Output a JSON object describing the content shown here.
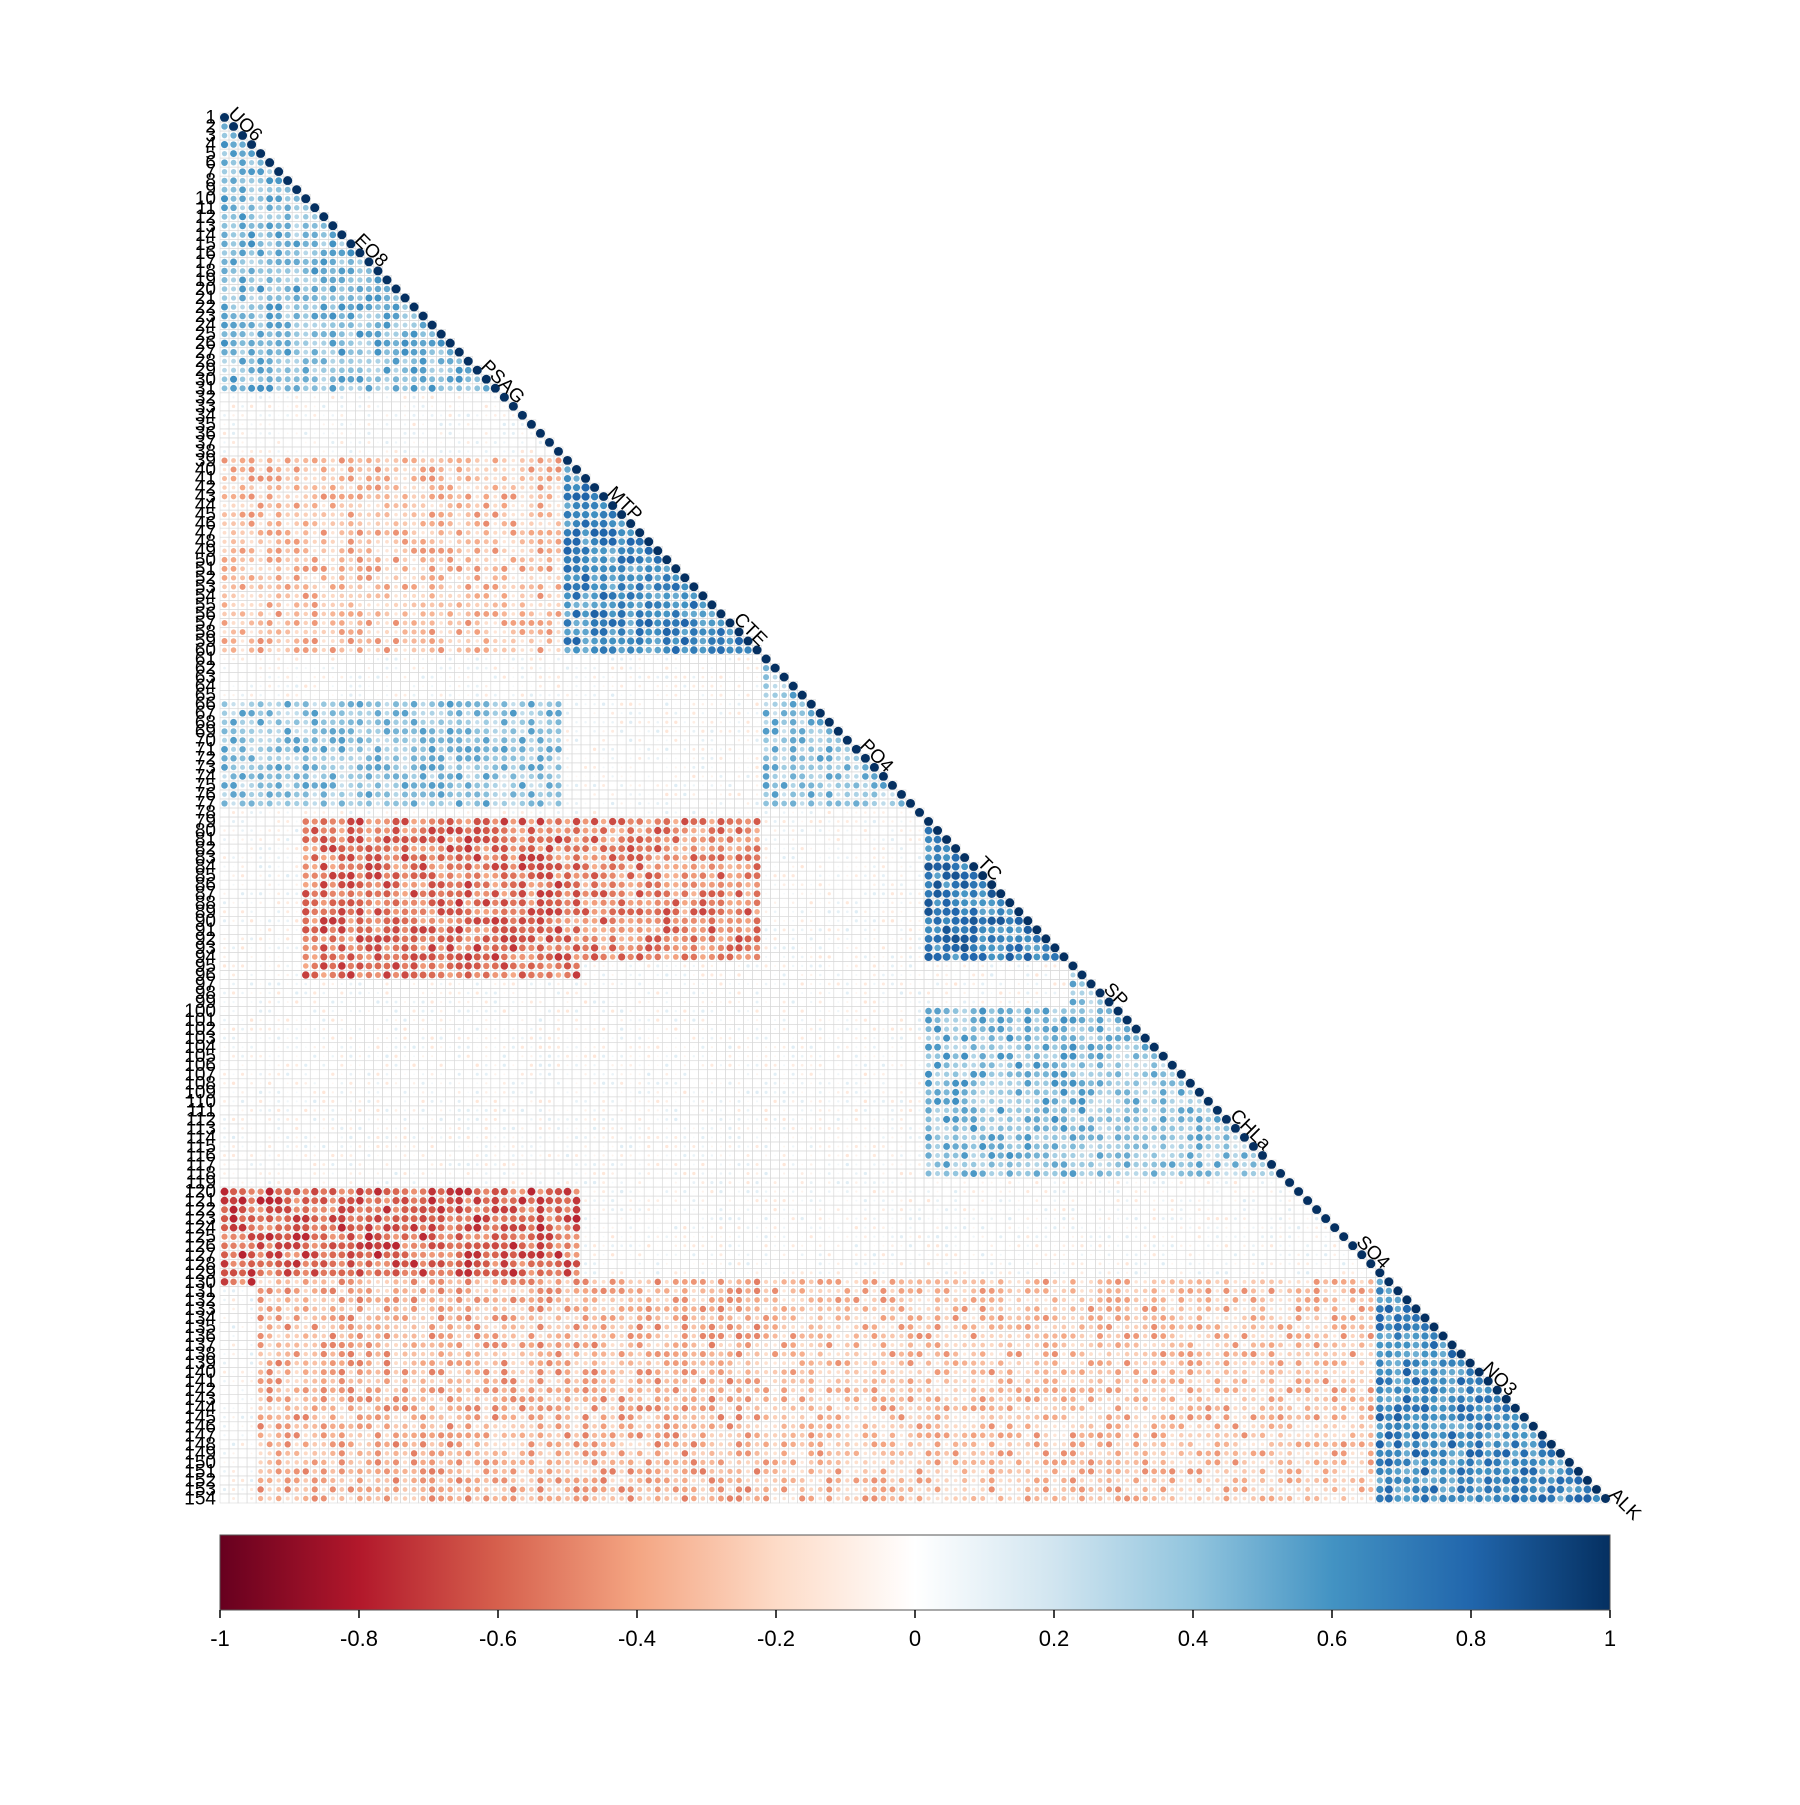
{
  "chart_data": {
    "type": "heatmap",
    "subtype": "correlation-matrix-lower-triangle-circles",
    "title": "",
    "n_variables": 154,
    "row_labels": [
      "1",
      "2",
      "3",
      "4",
      "5",
      "6",
      "7",
      "8",
      "9",
      "10",
      "11",
      "12",
      "13",
      "14",
      "15",
      "16",
      "17",
      "18",
      "19",
      "20",
      "21",
      "22",
      "23",
      "24",
      "25",
      "26",
      "27",
      "28",
      "29",
      "30",
      "31",
      "32",
      "33",
      "34",
      "35",
      "36",
      "37",
      "38",
      "39",
      "40",
      "41",
      "42",
      "43",
      "44",
      "45",
      "46",
      "47",
      "48",
      "49",
      "50",
      "51",
      "52",
      "53",
      "54",
      "55",
      "56",
      "57",
      "58",
      "59",
      "60",
      "61",
      "62",
      "63",
      "64",
      "65",
      "66",
      "67",
      "68",
      "69",
      "70",
      "71",
      "72",
      "73",
      "74",
      "75",
      "76",
      "77",
      "78",
      "79",
      "80",
      "81",
      "82",
      "83",
      "84",
      "85",
      "86",
      "87",
      "88",
      "89",
      "90",
      "91",
      "92",
      "93",
      "94",
      "95",
      "96",
      "97",
      "98",
      "99",
      "100",
      "101",
      "102",
      "103",
      "104",
      "105",
      "106",
      "107",
      "108",
      "109",
      "110",
      "111",
      "112",
      "113",
      "114",
      "115",
      "116",
      "117",
      "118",
      "119",
      "120",
      "121",
      "122",
      "123",
      "124",
      "125",
      "126",
      "127",
      "128",
      "129",
      "130",
      "131",
      "132",
      "133",
      "134",
      "135",
      "136",
      "137",
      "138",
      "139",
      "140",
      "141",
      "142",
      "143",
      "144",
      "145",
      "146",
      "147",
      "148",
      "149",
      "150",
      "151",
      "152",
      "153",
      "154"
    ],
    "diagonal_labels_visible": [
      "UO6",
      "EO8",
      "PSAG",
      "MTP",
      "CTE",
      "PO4",
      "TC",
      "SP",
      "CHLa",
      "SO4",
      "NO3",
      "ALK"
    ],
    "blocks": [
      {
        "rows": [
          2,
          31
        ],
        "cols": [
          1,
          31
        ],
        "value": 0.45
      },
      {
        "rows": [
          39,
          60
        ],
        "cols": [
          39,
          60
        ],
        "value": 0.65
      },
      {
        "rows": [
          61,
          77
        ],
        "cols": [
          61,
          77
        ],
        "value": 0.4
      },
      {
        "rows": [
          79,
          94
        ],
        "cols": [
          79,
          94
        ],
        "value": 0.7
      },
      {
        "rows": [
          95,
          118
        ],
        "cols": [
          95,
          118
        ],
        "value": 0.4
      },
      {
        "rows": [
          129,
          154
        ],
        "cols": [
          129,
          154
        ],
        "value": 0.65
      },
      {
        "rows": [
          79,
          96
        ],
        "cols": [
          10,
          40
        ],
        "value": -0.55
      },
      {
        "rows": [
          39,
          60
        ],
        "cols": [
          1,
          38
        ],
        "value": -0.3
      },
      {
        "rows": [
          120,
          130
        ],
        "cols": [
          1,
          40
        ],
        "value": -0.6
      },
      {
        "rows": [
          79,
          94
        ],
        "cols": [
          40,
          60
        ],
        "value": -0.5
      },
      {
        "rows": [
          130,
          154
        ],
        "cols": [
          5,
          60
        ],
        "value": -0.35
      },
      {
        "rows": [
          66,
          77
        ],
        "cols": [
          1,
          38
        ],
        "value": 0.4
      },
      {
        "rows": [
          100,
          118
        ],
        "cols": [
          79,
          96
        ],
        "value": 0.45
      },
      {
        "rows": [
          130,
          154
        ],
        "cols": [
          61,
          128
        ],
        "value": -0.3
      }
    ],
    "colorbar": {
      "min": -1,
      "max": 1,
      "ticks": [
        "-1",
        "-0.8",
        "-0.6",
        "-0.4",
        "-0.2",
        "0",
        "0.2",
        "0.4",
        "0.6",
        "0.8",
        "1"
      ],
      "colors": [
        "#67001F",
        "#B2182B",
        "#D6604D",
        "#F4A582",
        "#FDDBC7",
        "#FFFFFF",
        "#D1E5F0",
        "#92C5DE",
        "#4393C3",
        "#2166AC",
        "#053061"
      ]
    },
    "grid": true,
    "legend_position": "bottom"
  }
}
